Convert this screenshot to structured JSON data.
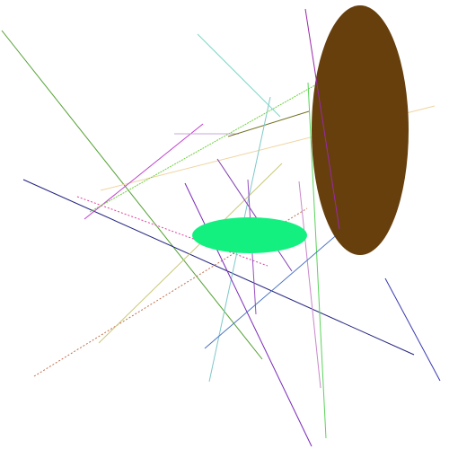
{
  "scene": {
    "background": "#ffffff",
    "colors": {
      "brown_ellipse": "#663f0c",
      "green_ellipse": "#13f080",
      "olive_long_diagonal": "#52a031",
      "navy_long": "#23237f",
      "purple_long": "#7a2ab8",
      "green_vertical": "#5ad35a",
      "magenta_vertical": "#9a2aa8",
      "cyan_top": "#7ad8c8",
      "tan_long": "#f0d4a0",
      "slate_blue_right": "#4a70c0",
      "navy_right": "#3a3ab0",
      "magenta_diag_left": "#c040d0",
      "pink_dotted": "#e040a0",
      "orange_dotted": "#c07050",
      "lime_dotted": "#70d040",
      "olive_short": "#707020",
      "lavender_short": "#c8a8d8",
      "khaki_diag": "#c8c878",
      "cyan_long": "#80c8c8",
      "purple_mid": "#8040b0",
      "violet_mid": "#9a50c0",
      "pink_vertical": "#c888c8"
    }
  }
}
